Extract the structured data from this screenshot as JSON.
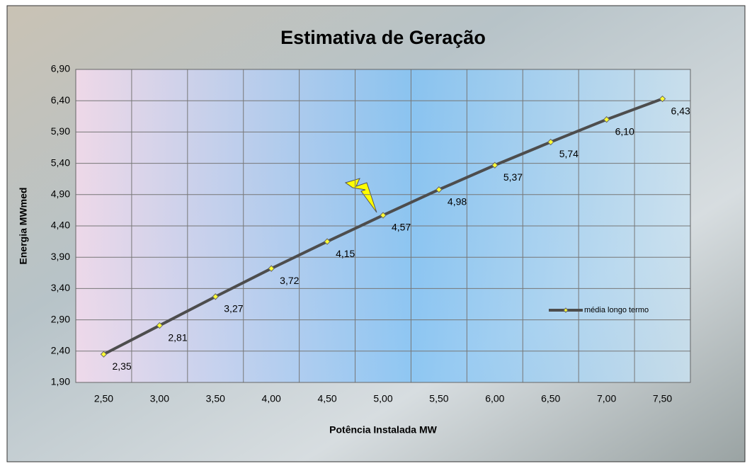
{
  "chart_data": {
    "type": "line",
    "title": "Estimativa de Geração",
    "x_label": "Potência Instalada  MW",
    "y_label": "Energia MWmed",
    "categories": [
      "2,50",
      "3,00",
      "3,50",
      "4,00",
      "4,50",
      "5,00",
      "5,50",
      "6,00",
      "6,50",
      "7,00",
      "7,50"
    ],
    "series": [
      {
        "name": "média longo termo",
        "color": "#4d4d4d",
        "marker_color": "#ffff33",
        "values": [
          2.35,
          2.81,
          3.27,
          3.72,
          4.15,
          4.57,
          4.98,
          5.37,
          5.74,
          6.1,
          6.43
        ],
        "value_labels": [
          "2,35",
          "2,81",
          "3,27",
          "3,72",
          "4,15",
          "4,57",
          "4,98",
          "5,37",
          "5,74",
          "6,10",
          "6,43"
        ]
      }
    ],
    "ylim": [
      1.9,
      6.9
    ],
    "yticks": [
      {
        "value": 1.9,
        "label": "1,90"
      },
      {
        "value": 2.4,
        "label": "2,40"
      },
      {
        "value": 2.9,
        "label": "2,90"
      },
      {
        "value": 3.4,
        "label": "3,40"
      },
      {
        "value": 3.9,
        "label": "3,90"
      },
      {
        "value": 4.4,
        "label": "4,40"
      },
      {
        "value": 4.9,
        "label": "4,90"
      },
      {
        "value": 5.4,
        "label": "5,40"
      },
      {
        "value": 5.9,
        "label": "5,90"
      },
      {
        "value": 6.4,
        "label": "6,40"
      },
      {
        "value": 6.9,
        "label": "6,90"
      }
    ],
    "grid": true
  }
}
